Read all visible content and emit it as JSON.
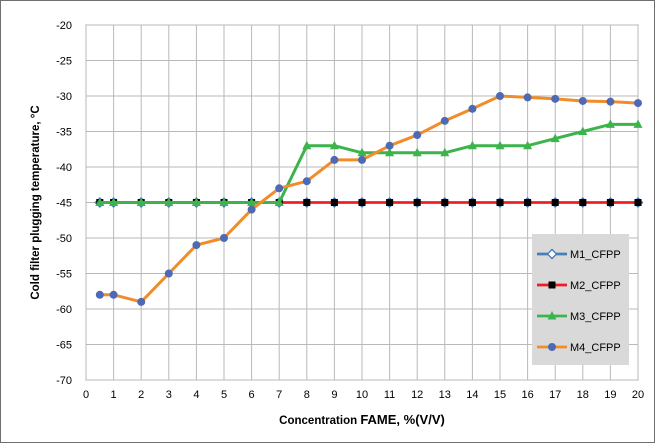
{
  "chart_data": {
    "type": "line",
    "xlabel": {
      "prefix": "Concentration ",
      "emphasis": "FAME, %(V/V)"
    },
    "ylabel": "Cold filter plugging temperature, °C",
    "xlim": [
      0,
      20
    ],
    "ylim": [
      -70,
      -20
    ],
    "xticks": [
      0,
      1,
      2,
      3,
      4,
      5,
      6,
      7,
      8,
      9,
      10,
      11,
      12,
      13,
      14,
      15,
      16,
      17,
      18,
      19,
      20
    ],
    "yticks": [
      -20,
      -25,
      -30,
      -35,
      -40,
      -45,
      -50,
      -55,
      -60,
      -65,
      -70
    ],
    "grid": true,
    "legend_position": "right-lower",
    "x": [
      0.5,
      1,
      2,
      3,
      4,
      5,
      6,
      7,
      8,
      9,
      10,
      11,
      12,
      13,
      14,
      15,
      16,
      17,
      18,
      19,
      20
    ],
    "series": [
      {
        "name": "M1_CFPP",
        "color": "#4a7ebb",
        "marker": "diamond-open",
        "values": [
          -45,
          -45,
          -45,
          -45,
          -45,
          -45,
          -45,
          -45,
          -45,
          -45,
          -45,
          -45,
          -45,
          -45,
          -45,
          -45,
          -45,
          -45,
          -45,
          -45,
          -45
        ]
      },
      {
        "name": "M2_CFPP",
        "color": "#ee1c25",
        "marker": "square",
        "marker_color": "#000000",
        "values": [
          -45,
          -45,
          -45,
          -45,
          -45,
          -45,
          -45,
          -45,
          -45,
          -45,
          -45,
          -45,
          -45,
          -45,
          -45,
          -45,
          -45,
          -45,
          -45,
          -45,
          -45
        ]
      },
      {
        "name": "M3_CFPP",
        "color": "#3cb44b",
        "marker": "triangle",
        "values": [
          -45,
          -45,
          -45,
          -45,
          -45,
          -45,
          -45,
          -45,
          -37,
          -37,
          -38,
          -38,
          -38,
          -38,
          -37,
          -37,
          -37,
          -36,
          -35,
          -34,
          -34
        ]
      },
      {
        "name": "M4_CFPP",
        "color": "#f28c28",
        "marker": "circle",
        "marker_color": "#4f6ab5",
        "values": [
          -58,
          -58,
          -59,
          -55,
          -51,
          -50,
          -46,
          -43,
          -42,
          -39,
          -39,
          -37,
          -35.5,
          -33.5,
          -31.8,
          -30,
          -30.2,
          -30.4,
          -30.7,
          -30.8,
          -31
        ]
      }
    ]
  }
}
